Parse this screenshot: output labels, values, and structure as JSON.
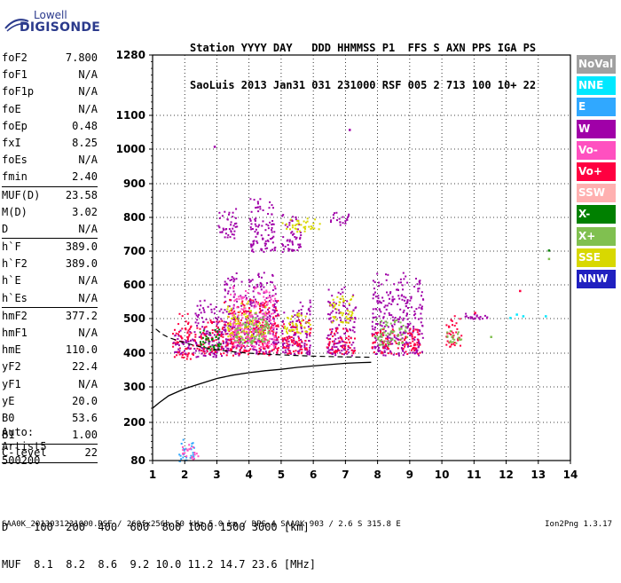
{
  "logo": {
    "top": "Lowell",
    "main": "DIGISONDE"
  },
  "header": {
    "line1": "Station YYYY DAY   DDD HHMMSS P1  FFS S AXN PPS IGA PS",
    "line2": "SaoLuis 2013 Jan31 031 231000 RSF 005 2 713 100 10+ 22"
  },
  "params": {
    "group1": [
      {
        "name": "foF2",
        "value": "7.800"
      },
      {
        "name": "foF1",
        "value": "N/A"
      },
      {
        "name": "foF1p",
        "value": "N/A"
      },
      {
        "name": "foE",
        "value": "N/A"
      },
      {
        "name": "foEp",
        "value": "0.48"
      },
      {
        "name": "fxI",
        "value": "8.25"
      },
      {
        "name": "foEs",
        "value": "N/A"
      },
      {
        "name": "fmin",
        "value": "2.40"
      }
    ],
    "group2": [
      {
        "name": "MUF(D)",
        "value": "23.58"
      },
      {
        "name": "M(D)",
        "value": "3.02"
      },
      {
        "name": "D",
        "value": "N/A"
      }
    ],
    "group3": [
      {
        "name": "h`F",
        "value": "389.0"
      },
      {
        "name": "h`F2",
        "value": "389.0"
      },
      {
        "name": "h`E",
        "value": "N/A"
      },
      {
        "name": "h`Es",
        "value": "N/A"
      }
    ],
    "group4": [
      {
        "name": "hmF2",
        "value": "377.2"
      },
      {
        "name": "hmF1",
        "value": "N/A"
      },
      {
        "name": "hmE",
        "value": "110.0"
      },
      {
        "name": "yF2",
        "value": "22.4"
      },
      {
        "name": "yF1",
        "value": "N/A"
      },
      {
        "name": "yE",
        "value": "20.0"
      },
      {
        "name": "B0",
        "value": "53.6"
      },
      {
        "name": "B1",
        "value": "1.00"
      }
    ],
    "group5": [
      {
        "name": "C-level",
        "value": "22"
      }
    ]
  },
  "extra": {
    "line1": "Auto:",
    "line2": "Artist5",
    "line3": "500200"
  },
  "legend": [
    {
      "label": "NoVal",
      "color": "#a0a0a0"
    },
    {
      "label": "NNE",
      "color": "#00e8ff"
    },
    {
      "label": "E",
      "color": "#30a8ff"
    },
    {
      "label": "W",
      "color": "#a000a8"
    },
    {
      "label": "Vo-",
      "color": "#ff50c0"
    },
    {
      "label": "Vo+",
      "color": "#ff0040"
    },
    {
      "label": "SSW",
      "color": "#ffb0b0"
    },
    {
      "label": "X-",
      "color": "#008000"
    },
    {
      "label": "X+",
      "color": "#80c050"
    },
    {
      "label": "SSE",
      "color": "#d8d800"
    },
    {
      "label": "NNW",
      "color": "#2020c0"
    }
  ],
  "muf": {
    "d_row": "D    100  200  400  600  800 1000 1500 3000 [km]",
    "muf_row": "MUF  8.1  8.2  8.6  9.2 10.0 11.2 14.7 23.6 [MHz]"
  },
  "footer": {
    "text": "SAA0K_2013031231000.RSF / 260fx256h 50 kHz 5.0 km / DPS-4 SAA0K 903 / 2.6 S 315.8 E",
    "version": "Ion2Png 1.3.17"
  },
  "chart_data": {
    "type": "scatter",
    "xlim": [
      1,
      14
    ],
    "x_ticks": [
      1,
      2,
      3,
      4,
      5,
      6,
      7,
      8,
      9,
      10,
      11,
      12,
      13,
      14
    ],
    "y_ticks": [
      80,
      200,
      300,
      400,
      500,
      600,
      700,
      800,
      900,
      1000,
      1100,
      1280
    ],
    "ylim": [
      80,
      1280
    ],
    "grid": true,
    "legend_position": "right",
    "profile_solid": [
      [
        1.0,
        240
      ],
      [
        1.2,
        255
      ],
      [
        1.5,
        275
      ],
      [
        2.0,
        295
      ],
      [
        2.5,
        310
      ],
      [
        3.0,
        325
      ],
      [
        3.5,
        335
      ],
      [
        4.0,
        342
      ],
      [
        4.5,
        348
      ],
      [
        5.0,
        352
      ],
      [
        5.5,
        358
      ],
      [
        6.0,
        362
      ],
      [
        6.5,
        366
      ],
      [
        7.0,
        370
      ],
      [
        7.5,
        372
      ],
      [
        7.8,
        373
      ]
    ],
    "profile_dashed": [
      [
        1.1,
        470
      ],
      [
        1.3,
        455
      ],
      [
        1.5,
        445
      ],
      [
        2.0,
        430
      ],
      [
        2.5,
        418
      ],
      [
        3.0,
        410
      ],
      [
        3.5,
        404
      ],
      [
        4.0,
        400
      ],
      [
        4.5,
        397
      ],
      [
        5.0,
        395
      ],
      [
        5.5,
        393
      ],
      [
        6.0,
        391
      ],
      [
        6.5,
        390
      ],
      [
        7.0,
        389
      ],
      [
        7.8,
        388
      ]
    ],
    "echo_clusters": [
      {
        "x": [
          1.6,
          2.3
        ],
        "y": [
          385,
          520
        ],
        "color": "#ff0040"
      },
      {
        "x": [
          1.6,
          2.3
        ],
        "y": [
          400,
          470
        ],
        "color": "#a000a8"
      },
      {
        "x": [
          2.3,
          3.2
        ],
        "y": [
          390,
          560
        ],
        "color": "#a000a8"
      },
      {
        "x": [
          2.3,
          3.2
        ],
        "y": [
          400,
          500
        ],
        "color": "#ff0040"
      },
      {
        "x": [
          2.4,
          3.1
        ],
        "y": [
          410,
          480
        ],
        "color": "#008000"
      },
      {
        "x": [
          3.2,
          4.9
        ],
        "y": [
          395,
          640
        ],
        "color": "#a000a8"
      },
      {
        "x": [
          3.2,
          4.9
        ],
        "y": [
          395,
          560
        ],
        "color": "#ff0040"
      },
      {
        "x": [
          3.3,
          4.5
        ],
        "y": [
          440,
          560
        ],
        "color": "#d8d800"
      },
      {
        "x": [
          3.4,
          4.8
        ],
        "y": [
          420,
          600
        ],
        "color": "#ff50c0"
      },
      {
        "x": [
          3.5,
          4.6
        ],
        "y": [
          430,
          520
        ],
        "color": "#80c050"
      },
      {
        "x": [
          5.0,
          5.9
        ],
        "y": [
          395,
          560
        ],
        "color": "#a000a8"
      },
      {
        "x": [
          5.0,
          5.9
        ],
        "y": [
          400,
          500
        ],
        "color": "#ff0040"
      },
      {
        "x": [
          5.0,
          5.9
        ],
        "y": [
          460,
          520
        ],
        "color": "#d8d800"
      },
      {
        "x": [
          6.4,
          7.3
        ],
        "y": [
          395,
          600
        ],
        "color": "#a000a8"
      },
      {
        "x": [
          6.4,
          7.3
        ],
        "y": [
          400,
          480
        ],
        "color": "#ff0040"
      },
      {
        "x": [
          6.5,
          7.2
        ],
        "y": [
          490,
          580
        ],
        "color": "#d8d800"
      },
      {
        "x": [
          7.8,
          9.4
        ],
        "y": [
          395,
          640
        ],
        "color": "#a000a8"
      },
      {
        "x": [
          7.8,
          9.3
        ],
        "y": [
          400,
          480
        ],
        "color": "#ff0040"
      },
      {
        "x": [
          7.9,
          8.9
        ],
        "y": [
          420,
          500
        ],
        "color": "#80c050"
      },
      {
        "x": [
          10.1,
          10.6
        ],
        "y": [
          420,
          520
        ],
        "color": "#ff0040"
      },
      {
        "x": [
          10.1,
          10.6
        ],
        "y": [
          430,
          470
        ],
        "color": "#80c050"
      },
      {
        "x": [
          10.7,
          11.4
        ],
        "y": [
          500,
          520
        ],
        "color": "#a000a8"
      },
      {
        "x": [
          3.0,
          3.6
        ],
        "y": [
          740,
          830
        ],
        "color": "#a000a8"
      },
      {
        "x": [
          4.0,
          4.8
        ],
        "y": [
          700,
          860
        ],
        "color": "#a000a8"
      },
      {
        "x": [
          5.0,
          5.6
        ],
        "y": [
          700,
          820
        ],
        "color": "#a000a8"
      },
      {
        "x": [
          5.0,
          6.2
        ],
        "y": [
          760,
          800
        ],
        "color": "#d8d800"
      },
      {
        "x": [
          6.5,
          7.1
        ],
        "y": [
          780,
          820
        ],
        "color": "#a000a8"
      },
      {
        "x": [
          1.8,
          2.3
        ],
        "y": [
          80,
          150
        ],
        "color": "#30a8ff"
      },
      {
        "x": [
          1.9,
          2.4
        ],
        "y": [
          82,
          140
        ],
        "color": "#ff50c0"
      }
    ],
    "echo_sparse": [
      {
        "x": 12.1,
        "y": 505,
        "color": "#00e8ff"
      },
      {
        "x": 12.3,
        "y": 515,
        "color": "#00e8ff"
      },
      {
        "x": 12.5,
        "y": 510,
        "color": "#00e8ff"
      },
      {
        "x": 13.2,
        "y": 510,
        "color": "#00e8ff"
      },
      {
        "x": 13.3,
        "y": 705,
        "color": "#008000"
      },
      {
        "x": 13.3,
        "y": 680,
        "color": "#80c050"
      },
      {
        "x": 11.5,
        "y": 450,
        "color": "#80c050"
      },
      {
        "x": 11.0,
        "y": 520,
        "color": "#ff0040"
      },
      {
        "x": 7.1,
        "y": 1060,
        "color": "#a000a8"
      },
      {
        "x": 2.9,
        "y": 1010,
        "color": "#a000a8"
      },
      {
        "x": 12.4,
        "y": 585,
        "color": "#ff0040"
      }
    ]
  }
}
